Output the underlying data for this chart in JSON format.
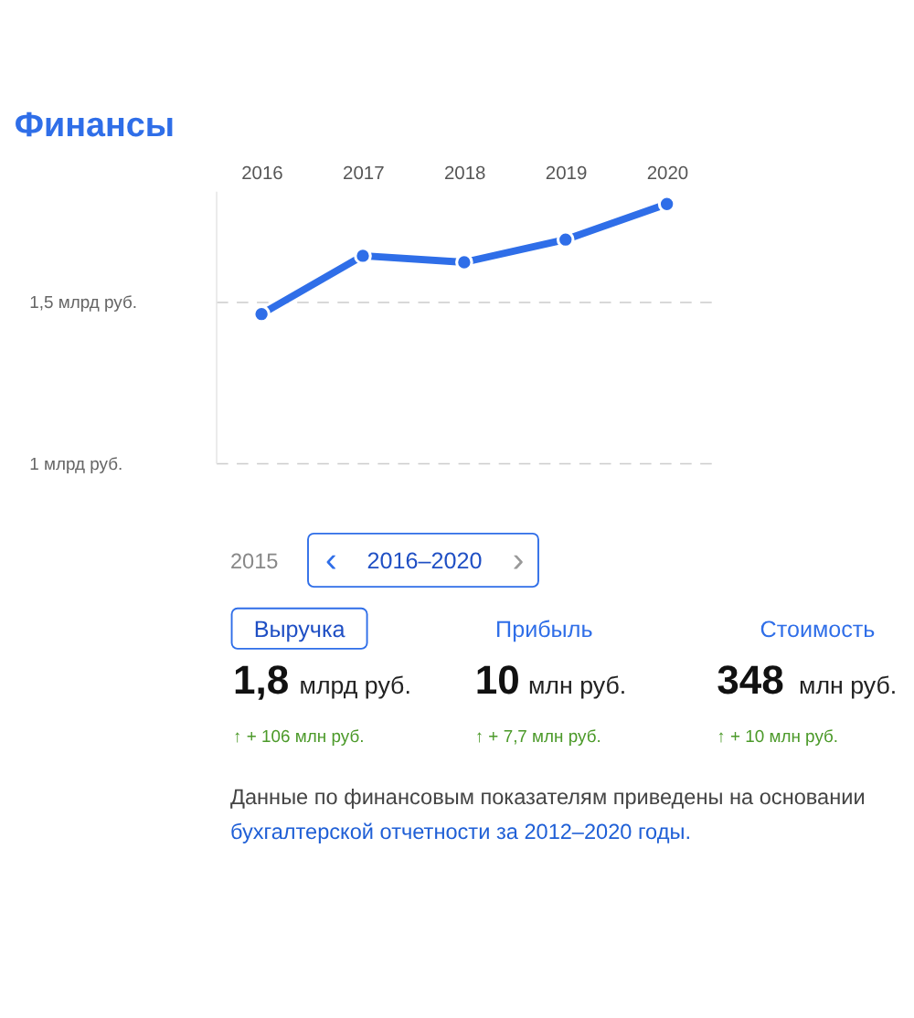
{
  "chart_data": [
    {
      "type": "line",
      "title": "Финансы",
      "categories": [
        "2016",
        "2017",
        "2018",
        "2019",
        "2020"
      ],
      "series": [
        {
          "color": "#2f6ee8",
          "values": [
            1.46,
            1.64,
            1.62,
            1.69,
            1.8
          ]
        }
      ],
      "ylim": [
        1,
        1.84
      ],
      "yticks": [
        {
          "value": 1,
          "label": "1 млрд руб."
        },
        {
          "value": 1.5,
          "label": "1,5 млрд руб."
        }
      ],
      "grid": "y",
      "marker": "circle",
      "line_style": "solid"
    },
    {
      "type": "other",
      "annotations": [
        "2015",
        "‹",
        "2016–2020",
        "›",
        "Выручка",
        "Прибыль",
        "Стоимость",
        "1,8",
        "млрд руб.",
        "10",
        "млн руб.",
        "348",
        "млн руб.",
        "↑ + 106 млн руб.",
        "↑ + 7,7 млн руб.",
        "↑ + 10 млн руб.",
        "Данные по финансовым показателям приведены на основании",
        "бухгалтерской отчетности за 2012–2020 годы."
      ]
    }
  ]
}
